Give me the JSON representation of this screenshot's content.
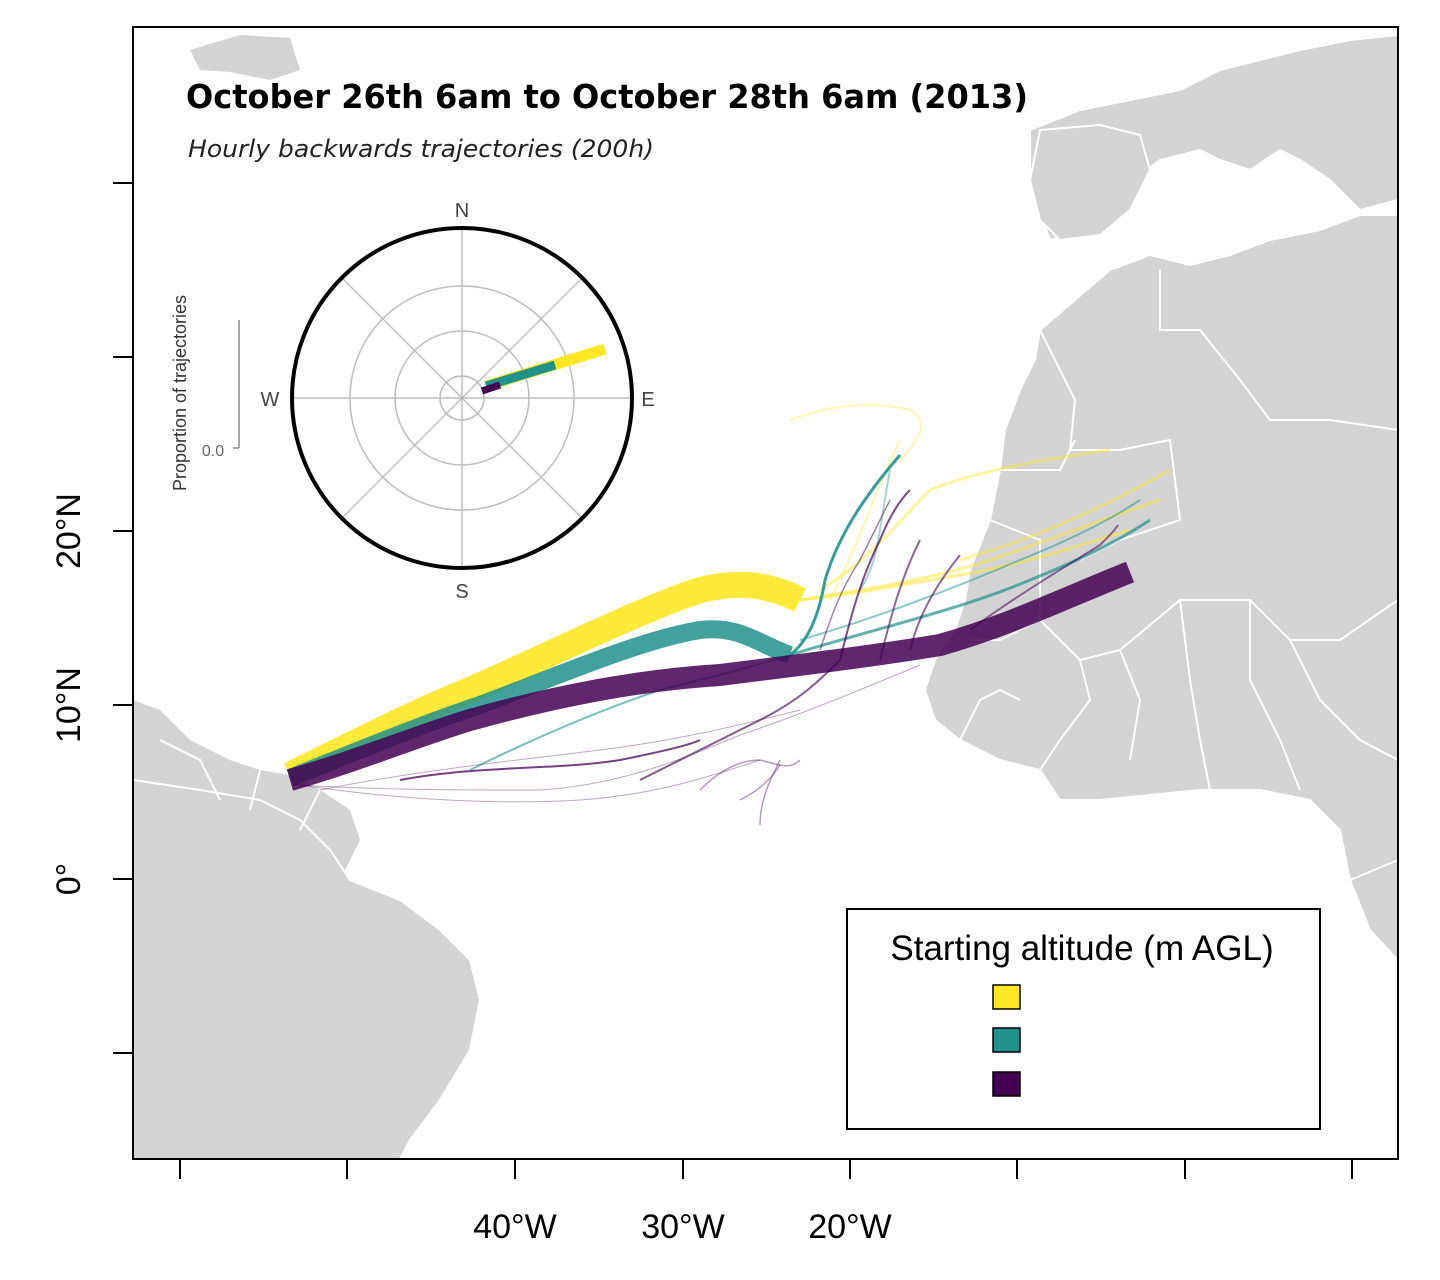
{
  "title": "October 26th 6am to October 28th 6am (2013)",
  "subtitle": "Hourly backwards trajectories (200h)",
  "axes": {
    "x_labels": [
      "40°W",
      "30°W",
      "20°W"
    ],
    "y_labels": [
      "20°N",
      "10°N",
      "0°"
    ]
  },
  "compass": {
    "north": "N",
    "south": "S",
    "east": "E",
    "west": "W",
    "y_axis_label": "Proportion of trajectories",
    "y_tick": "0.0"
  },
  "legend": {
    "title": "Starting altitude (m AGL)",
    "entries": [
      {
        "color": "#fde725"
      },
      {
        "color": "#21918c"
      },
      {
        "color": "#440154"
      }
    ]
  },
  "colors": {
    "land": "#d3d3d3",
    "ocean": "#ffffff",
    "border": "#ffffff",
    "yellow": "#fde725",
    "teal": "#21918c",
    "purple": "#440154"
  }
}
